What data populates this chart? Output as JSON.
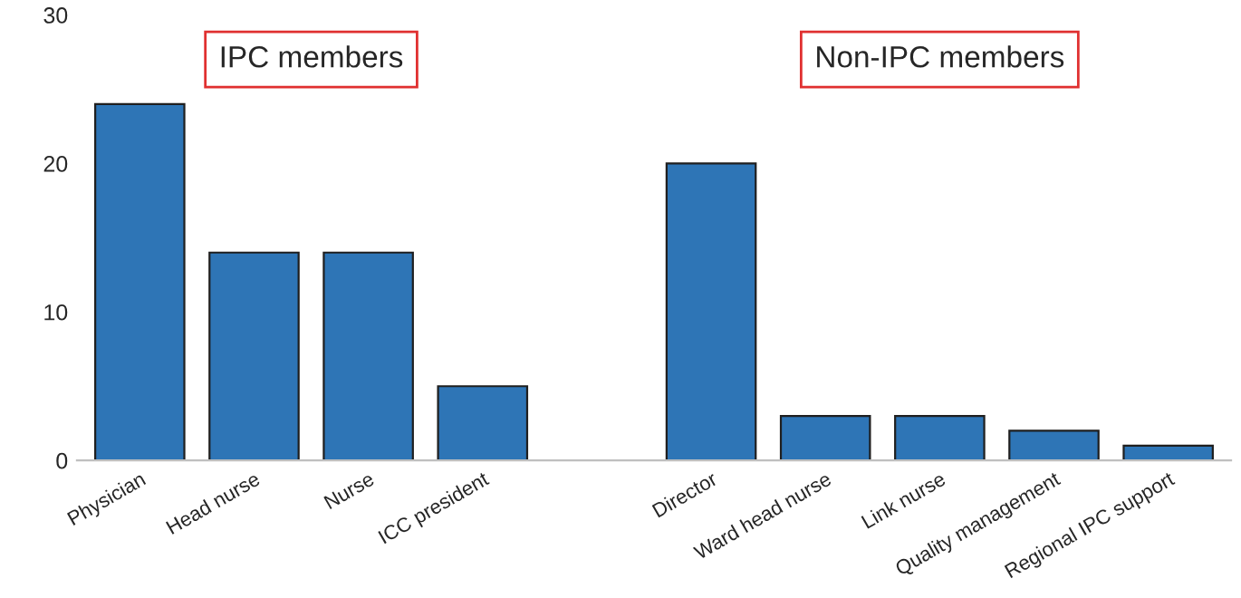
{
  "chart_data": {
    "type": "bar",
    "categories": [
      "Physician",
      "Head nurse",
      "Nurse",
      "ICC president",
      null,
      "Director",
      "Ward head nurse",
      "Link nurse",
      "Quality management",
      "Regional IPC support"
    ],
    "values": [
      24,
      14,
      14,
      5,
      null,
      20,
      3,
      3,
      2,
      1
    ],
    "color": "#2e75b6",
    "ylim": [
      0,
      30
    ],
    "yticks": [
      0,
      10,
      20,
      30
    ],
    "annotations": [
      "IPC members",
      "Non-IPC members"
    ],
    "grid": false,
    "legend": false
  }
}
